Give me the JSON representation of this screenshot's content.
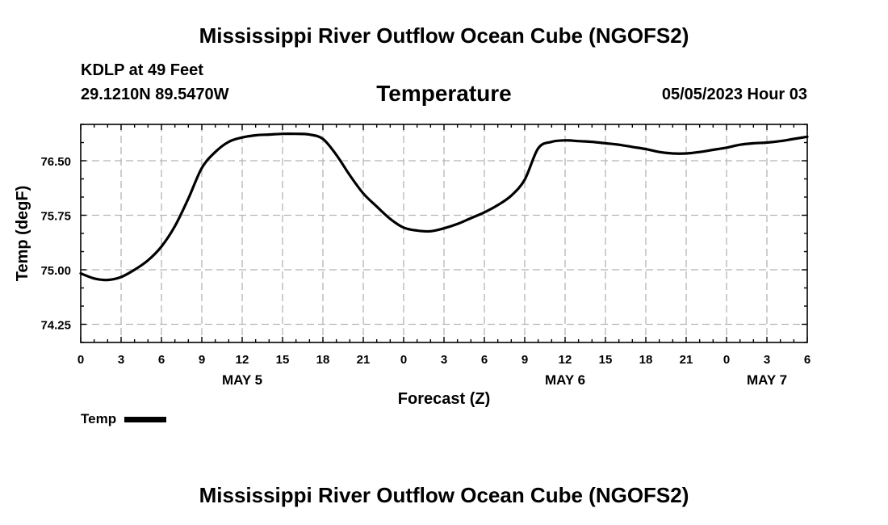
{
  "header": {
    "main_title": "Mississippi River Outflow Ocean Cube (NGOFS2)",
    "station": "KDLP at 49 Feet",
    "coords": "29.1210N  89.5470W",
    "datetime": "05/05/2023 Hour 03",
    "bottom_title": "Mississippi River Outflow Ocean Cube (NGOFS2)"
  },
  "chart_data": {
    "type": "line",
    "title": "Temperature",
    "xlabel": "Forecast (Z)",
    "ylabel": "Temp (degF)",
    "xlim": [
      0,
      54
    ],
    "ylim": [
      74.0,
      77.0
    ],
    "x_tick_values": [
      0,
      3,
      6,
      9,
      12,
      15,
      18,
      21,
      24,
      27,
      30,
      33,
      36,
      39,
      42,
      45,
      48,
      51,
      54
    ],
    "x_tick_labels": [
      "0",
      "3",
      "6",
      "9",
      "12",
      "15",
      "18",
      "21",
      "0",
      "3",
      "6",
      "9",
      "12",
      "15",
      "18",
      "21",
      "0",
      "3",
      "6"
    ],
    "y_tick_values": [
      74.25,
      75.0,
      75.75,
      76.5
    ],
    "y_tick_labels": [
      "74.25",
      "75.00",
      "75.75",
      "76.50"
    ],
    "date_labels": [
      {
        "x": 12,
        "label": "MAY 5"
      },
      {
        "x": 36,
        "label": "MAY 6"
      },
      {
        "x": 51,
        "label": "MAY 7"
      }
    ],
    "grid": true,
    "legend_position": "bottom-left",
    "series": [
      {
        "name": "Temp",
        "color": "#000000",
        "x": [
          0,
          1,
          2,
          3,
          4,
          5,
          6,
          7,
          8,
          9,
          10,
          11,
          12,
          13,
          14,
          15,
          16,
          17,
          18,
          19,
          20,
          21,
          22,
          23,
          24,
          25,
          26,
          27,
          28,
          29,
          30,
          31,
          32,
          33,
          34,
          35,
          36,
          37,
          38,
          39,
          40,
          41,
          42,
          43,
          44,
          45,
          46,
          47,
          48,
          49,
          50,
          51,
          52,
          53,
          54
        ],
        "values": [
          74.95,
          74.88,
          74.86,
          74.9,
          75.0,
          75.13,
          75.32,
          75.6,
          75.98,
          76.4,
          76.62,
          76.76,
          76.82,
          76.85,
          76.86,
          76.87,
          76.87,
          76.86,
          76.8,
          76.58,
          76.3,
          76.05,
          75.87,
          75.7,
          75.58,
          75.54,
          75.53,
          75.57,
          75.63,
          75.71,
          75.79,
          75.89,
          76.02,
          76.24,
          76.67,
          76.76,
          76.78,
          76.77,
          76.76,
          76.74,
          76.72,
          76.69,
          76.66,
          76.62,
          76.6,
          76.6,
          76.62,
          76.65,
          76.68,
          76.72,
          76.74,
          76.75,
          76.77,
          76.8,
          76.83
        ]
      }
    ]
  }
}
